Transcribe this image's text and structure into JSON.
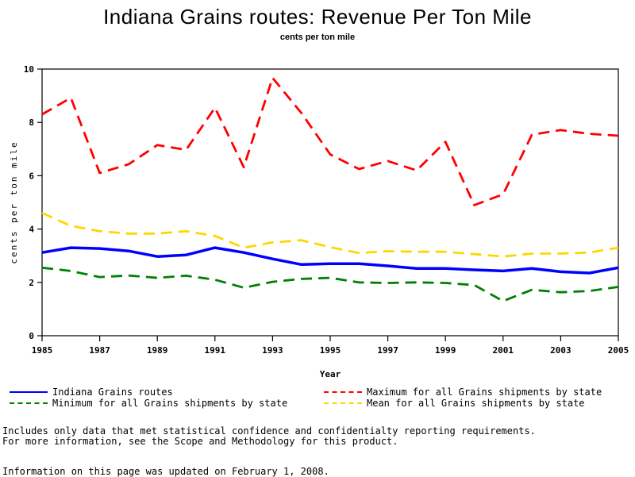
{
  "title": "Indiana Grains routes: Revenue Per Ton Mile",
  "subtitle": "cents per ton mile",
  "chart_data": {
    "type": "line",
    "title": "Indiana Grains routes: Revenue Per Ton Mile",
    "subtitle": "cents per ton mile",
    "xlabel": "Year",
    "ylabel": "cents per ton mile",
    "x": [
      1985,
      1986,
      1987,
      1988,
      1989,
      1990,
      1991,
      1992,
      1993,
      1994,
      1995,
      1996,
      1997,
      1998,
      1999,
      2000,
      2001,
      2002,
      2003,
      2004,
      2005
    ],
    "xlim": [
      1985,
      2005
    ],
    "ylim": [
      0,
      10
    ],
    "xticks": [
      "1985",
      "1987",
      "1989",
      "1991",
      "1993",
      "1995",
      "1997",
      "1999",
      "2001",
      "2003",
      "2005"
    ],
    "yticks": [
      "0",
      "2",
      "4",
      "6",
      "8",
      "10"
    ],
    "grid": false,
    "legend_position": "bottom",
    "series": [
      {
        "name": "Indiana Grains routes",
        "color": "#0000ff",
        "style": "solid",
        "values": [
          3.12,
          3.3,
          3.27,
          3.18,
          2.97,
          3.03,
          3.3,
          3.12,
          2.88,
          2.67,
          2.7,
          2.7,
          2.62,
          2.52,
          2.52,
          2.47,
          2.43,
          2.52,
          2.4,
          2.35,
          2.55
        ]
      },
      {
        "name": "Maximum for all Grains shipments by state",
        "color": "#ff0000",
        "style": "dashed",
        "values": [
          8.3,
          8.92,
          6.1,
          6.43,
          7.15,
          6.97,
          8.55,
          6.32,
          9.67,
          8.35,
          6.8,
          6.25,
          6.55,
          6.2,
          7.27,
          4.9,
          5.3,
          7.54,
          7.71,
          7.57,
          7.5
        ]
      },
      {
        "name": "Minimum for all Grains shipments by state",
        "color": "#008000",
        "style": "dashed",
        "values": [
          2.55,
          2.43,
          2.2,
          2.26,
          2.17,
          2.25,
          2.1,
          1.8,
          2.02,
          2.13,
          2.17,
          2.0,
          1.98,
          2.0,
          1.98,
          1.9,
          1.3,
          1.72,
          1.63,
          1.68,
          1.83
        ]
      },
      {
        "name": "Mean for all Grains shipments by state",
        "color": "#ffd700",
        "style": "dashed",
        "values": [
          4.6,
          4.12,
          3.92,
          3.83,
          3.83,
          3.92,
          3.74,
          3.3,
          3.5,
          3.58,
          3.32,
          3.1,
          3.17,
          3.15,
          3.15,
          3.06,
          2.97,
          3.08,
          3.08,
          3.12,
          3.3
        ]
      }
    ]
  },
  "legend": [
    {
      "label": "Indiana Grains routes",
      "color": "#0000ff",
      "style": "solid"
    },
    {
      "label": "Maximum for all Grains shipments by state",
      "color": "#ff0000",
      "style": "dashed"
    },
    {
      "label": "Minimum for all Grains shipments by state",
      "color": "#008000",
      "style": "dashed"
    },
    {
      "label": "Mean for all Grains shipments by state",
      "color": "#ffd700",
      "style": "dashed"
    }
  ],
  "footnotes": {
    "line1": "Includes only data that met statistical confidence and confidentialty reporting requirements.",
    "line2": "For more information, see the Scope and Methodology for this product.",
    "updated": "Information on this page was updated on February 1, 2008."
  }
}
